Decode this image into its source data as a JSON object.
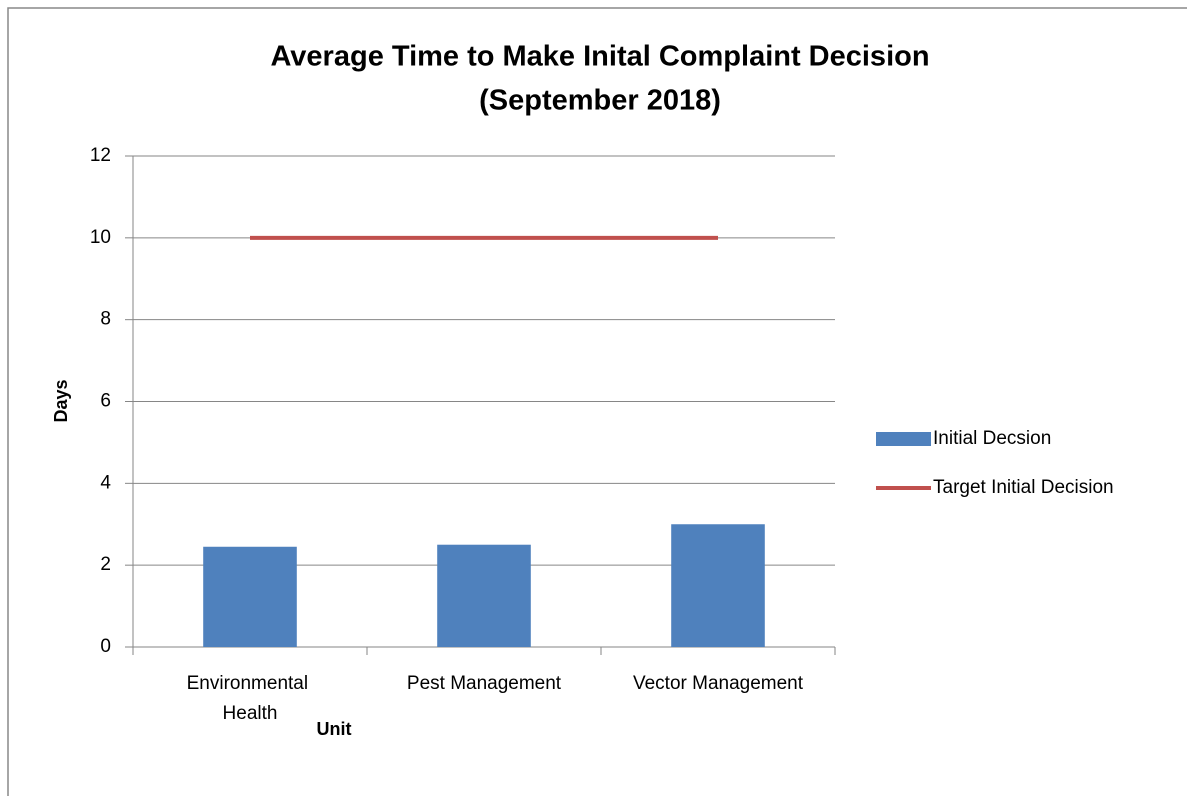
{
  "chart_data": {
    "type": "bar",
    "title": "Average Time to Make Inital Complaint Decision",
    "subtitle": "(September 2018)",
    "x_label": "Unit",
    "y_label": "Days",
    "categories": [
      "Environmental Health",
      "Pest Management",
      "Vector Management"
    ],
    "series": [
      {
        "name": "Initial Decsion",
        "type": "bar",
        "color": "#4f81bd",
        "values": [
          2.45,
          2.5,
          3.0
        ]
      },
      {
        "name": "Target Initial Decision",
        "type": "line",
        "color": "#c0504d",
        "values": [
          10,
          10,
          10
        ]
      }
    ],
    "ylim": [
      0,
      12
    ],
    "yticks": [
      0,
      2,
      4,
      6,
      8,
      10,
      12
    ],
    "grid": true,
    "legend": "right"
  }
}
